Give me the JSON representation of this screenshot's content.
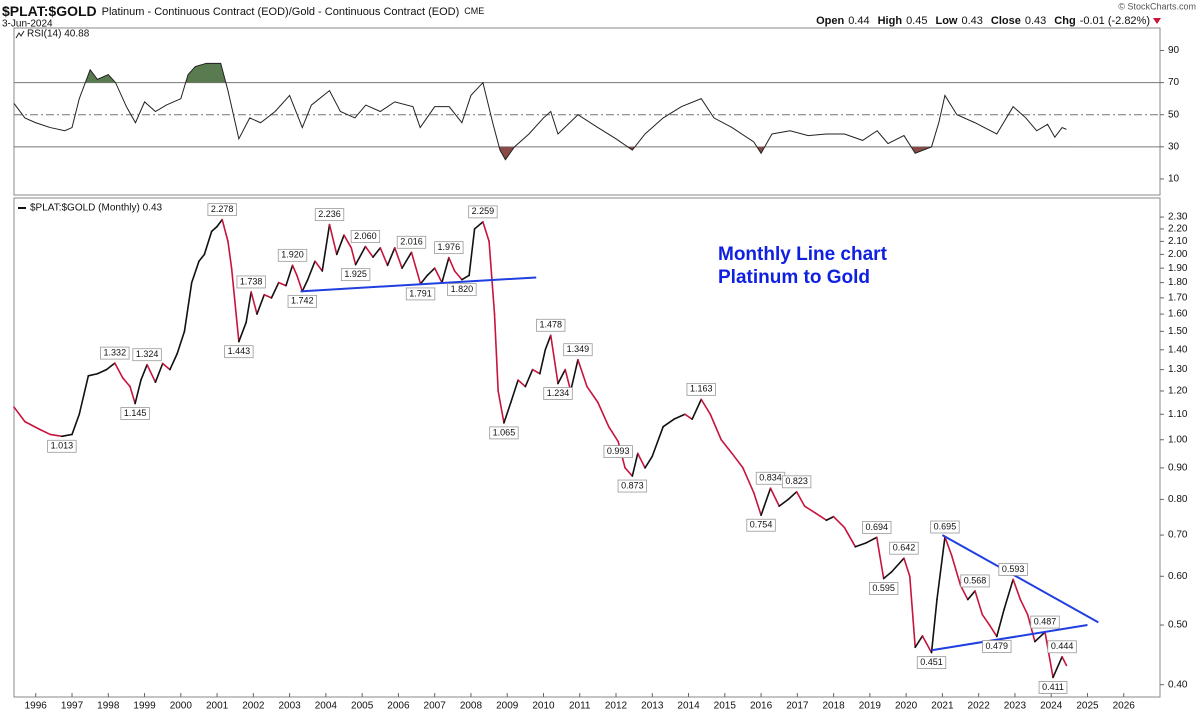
{
  "header": {
    "symbol": "$PLAT:$GOLD",
    "description": "Platinum - Continuous Contract (EOD)/Gold - Continuous Contract (EOD)",
    "exchange": "CME",
    "date": "3-Jun-2024",
    "credit": "© StockCharts.com",
    "quote": [
      {
        "label": "Open",
        "value": "0.44"
      },
      {
        "label": "High",
        "value": "0.45"
      },
      {
        "label": "Low",
        "value": "0.43"
      },
      {
        "label": "Close",
        "value": "0.43"
      },
      {
        "label": "Chg",
        "value": "-0.01 (-2.82%)"
      }
    ]
  },
  "chart_data": [
    {
      "type": "line",
      "xlim": [
        1995.4,
        2027.0
      ],
      "ylim": [
        0,
        104
      ],
      "yticks": [
        10,
        30,
        50,
        70,
        90
      ],
      "overbought": 70,
      "oversold": 30,
      "midline": 50,
      "overbought_color": "#5a7a50",
      "oversold_color": "#8a4a48",
      "x": [
        1995.4,
        1995.7,
        1996.0,
        1996.4,
        1996.8,
        1997.0,
        1997.2,
        1997.5,
        1997.7,
        1998.0,
        1998.2,
        1998.5,
        1998.75,
        1999.0,
        1999.3,
        1999.6,
        2000.0,
        2000.2,
        2000.4,
        2000.7,
        2001.1,
        2001.3,
        2001.6,
        2001.9,
        2002.2,
        2002.6,
        2003.0,
        2003.35,
        2003.6,
        2004.1,
        2004.4,
        2004.8,
        2005.1,
        2005.5,
        2005.9,
        2006.4,
        2006.6,
        2007.0,
        2007.4,
        2007.75,
        2008.0,
        2008.33,
        2008.6,
        2008.8,
        2008.95,
        2009.2,
        2009.6,
        2010.0,
        2010.2,
        2010.4,
        2010.95,
        2011.5,
        2012.0,
        2012.45,
        2012.8,
        2013.3,
        2013.8,
        2014.35,
        2014.7,
        2015.2,
        2015.8,
        2016.0,
        2016.3,
        2016.8,
        2017.3,
        2017.8,
        2018.3,
        2018.8,
        2019.2,
        2019.5,
        2019.94,
        2020.25,
        2020.7,
        2020.9,
        2021.07,
        2021.4,
        2021.9,
        2022.5,
        2022.95,
        2023.3,
        2023.6,
        2023.9,
        2024.1,
        2024.3,
        2024.42
      ],
      "series": [
        {
          "name": "RSI(14) 40.88",
          "color": "#222222",
          "values": [
            57,
            48,
            45,
            42,
            40,
            42,
            60,
            78,
            72,
            75,
            70,
            55,
            45,
            58,
            52,
            56,
            60,
            75,
            80,
            82,
            82,
            65,
            35,
            48,
            45,
            52,
            62,
            42,
            56,
            65,
            52,
            48,
            56,
            52,
            58,
            55,
            42,
            55,
            55,
            45,
            62,
            70,
            45,
            28,
            22,
            30,
            38,
            48,
            52,
            38,
            50,
            42,
            35,
            28,
            38,
            48,
            55,
            60,
            48,
            42,
            33,
            26,
            38,
            40,
            37,
            38,
            38,
            34,
            40,
            32,
            37,
            26,
            30,
            45,
            62,
            50,
            45,
            38,
            55,
            48,
            40,
            44,
            36,
            42,
            40.88
          ]
        }
      ]
    },
    {
      "type": "line",
      "log_scale": true,
      "xlim": [
        1995.4,
        2027.0
      ],
      "xticks": [
        1996,
        1997,
        1998,
        1999,
        2000,
        2001,
        2002,
        2003,
        2004,
        2005,
        2006,
        2007,
        2008,
        2009,
        2010,
        2011,
        2012,
        2013,
        2014,
        2015,
        2016,
        2017,
        2018,
        2019,
        2020,
        2021,
        2022,
        2023,
        2024,
        2025,
        2026
      ],
      "ylim": [
        0.382,
        2.47
      ],
      "yticks": [
        {
          "value": 0.4,
          "label": "0.40"
        },
        {
          "value": 0.5,
          "label": "0.50"
        },
        {
          "value": 0.6,
          "label": "0.60"
        },
        {
          "value": 0.7,
          "label": "0.70"
        },
        {
          "value": 0.8,
          "label": "0.80"
        },
        {
          "value": 0.9,
          "label": "0.90"
        },
        {
          "value": 1.0,
          "label": "1.00"
        },
        {
          "value": 1.1,
          "label": "1.10"
        },
        {
          "value": 1.2,
          "label": "1.20"
        },
        {
          "value": 1.3,
          "label": "1.30"
        },
        {
          "value": 1.4,
          "label": "1.40"
        },
        {
          "value": 1.5,
          "label": "1.50"
        },
        {
          "value": 1.6,
          "label": "1.60"
        },
        {
          "value": 1.7,
          "label": "1.70"
        },
        {
          "value": 1.8,
          "label": "1.80"
        },
        {
          "value": 1.9,
          "label": "1.90"
        },
        {
          "value": 2.0,
          "label": "2.00"
        },
        {
          "value": 2.1,
          "label": "2.10"
        },
        {
          "value": 2.2,
          "label": "2.20"
        },
        {
          "value": 2.3,
          "label": "2.30"
        }
      ],
      "x": [
        1995.4,
        1995.7,
        1996.1,
        1996.4,
        1996.72,
        1997.0,
        1997.2,
        1997.45,
        1997.7,
        1997.95,
        1998.18,
        1998.4,
        1998.6,
        1998.74,
        1998.9,
        1999.07,
        1999.3,
        1999.5,
        1999.7,
        1999.9,
        2000.1,
        2000.3,
        2000.5,
        2000.65,
        2000.85,
        2001.0,
        2001.14,
        2001.3,
        2001.4,
        2001.6,
        2001.8,
        2001.94,
        2002.1,
        2002.3,
        2002.5,
        2002.7,
        2002.9,
        2003.08,
        2003.2,
        2003.35,
        2003.5,
        2003.7,
        2003.9,
        2004.1,
        2004.3,
        2004.5,
        2004.7,
        2004.82,
        2005.09,
        2005.3,
        2005.5,
        2005.7,
        2005.9,
        2006.1,
        2006.36,
        2006.61,
        2006.8,
        2007.0,
        2007.2,
        2007.39,
        2007.55,
        2007.75,
        2007.95,
        2008.1,
        2008.33,
        2008.5,
        2008.65,
        2008.75,
        2008.91,
        2009.1,
        2009.3,
        2009.5,
        2009.7,
        2009.9,
        2010.05,
        2010.2,
        2010.4,
        2010.6,
        2010.75,
        2010.95,
        2011.2,
        2011.5,
        2011.8,
        2012.06,
        2012.25,
        2012.45,
        2012.6,
        2012.8,
        2013.0,
        2013.3,
        2013.6,
        2013.9,
        2014.1,
        2014.35,
        2014.6,
        2014.9,
        2015.2,
        2015.5,
        2015.8,
        2016.0,
        2016.26,
        2016.5,
        2016.75,
        2016.98,
        2017.2,
        2017.5,
        2017.8,
        2018.0,
        2018.3,
        2018.6,
        2018.9,
        2019.19,
        2019.38,
        2019.6,
        2019.94,
        2020.1,
        2020.25,
        2020.45,
        2020.7,
        2020.85,
        2021.07,
        2021.25,
        2021.5,
        2021.7,
        2021.9,
        2022.1,
        2022.3,
        2022.5,
        2022.7,
        2022.95,
        2023.15,
        2023.35,
        2023.55,
        2023.83,
        2024.05,
        2024.3,
        2024.42
      ],
      "series": [
        {
          "name": "$PLAT:$GOLD (Monthly) 0.43",
          "up_color": "#111111",
          "down_color": "#c8143c",
          "values": [
            1.13,
            1.07,
            1.04,
            1.02,
            1.013,
            1.02,
            1.1,
            1.27,
            1.28,
            1.3,
            1.332,
            1.26,
            1.22,
            1.145,
            1.25,
            1.324,
            1.24,
            1.33,
            1.3,
            1.38,
            1.5,
            1.8,
            1.95,
            2.0,
            2.18,
            2.22,
            2.278,
            2.1,
            1.9,
            1.443,
            1.55,
            1.738,
            1.6,
            1.72,
            1.7,
            1.8,
            1.78,
            1.92,
            1.85,
            1.742,
            1.82,
            1.95,
            1.88,
            2.236,
            2.0,
            2.15,
            2.05,
            1.925,
            2.06,
            1.98,
            2.05,
            1.92,
            2.05,
            1.9,
            2.016,
            1.791,
            1.85,
            1.9,
            1.8,
            1.976,
            1.88,
            1.82,
            1.85,
            2.2,
            2.259,
            2.1,
            1.6,
            1.2,
            1.065,
            1.15,
            1.25,
            1.22,
            1.3,
            1.28,
            1.4,
            1.478,
            1.234,
            1.3,
            1.2,
            1.349,
            1.22,
            1.15,
            1.05,
            0.993,
            0.9,
            0.873,
            0.95,
            0.9,
            0.94,
            1.05,
            1.08,
            1.1,
            1.08,
            1.163,
            1.1,
            1.0,
            0.95,
            0.9,
            0.82,
            0.754,
            0.834,
            0.78,
            0.8,
            0.823,
            0.78,
            0.76,
            0.74,
            0.75,
            0.72,
            0.67,
            0.68,
            0.694,
            0.595,
            0.61,
            0.642,
            0.6,
            0.46,
            0.48,
            0.451,
            0.55,
            0.695,
            0.65,
            0.58,
            0.55,
            0.568,
            0.52,
            0.5,
            0.479,
            0.53,
            0.593,
            0.55,
            0.52,
            0.47,
            0.487,
            0.411,
            0.444,
            0.43
          ]
        }
      ],
      "annotations": [
        {
          "x": 1996.72,
          "y": 1.013
        },
        {
          "x": 1998.18,
          "y": 1.332
        },
        {
          "x": 1998.74,
          "y": 1.145
        },
        {
          "x": 1999.07,
          "y": 1.324
        },
        {
          "x": 2001.14,
          "y": 2.278
        },
        {
          "x": 2001.6,
          "y": 1.443
        },
        {
          "x": 2001.94,
          "y": 1.738
        },
        {
          "x": 2003.08,
          "y": 1.92,
          "label": "1.920"
        },
        {
          "x": 2003.35,
          "y": 1.742
        },
        {
          "x": 2004.1,
          "y": 2.236
        },
        {
          "x": 2005.09,
          "y": 2.06,
          "label": "2.060"
        },
        {
          "x": 2004.82,
          "y": 1.925
        },
        {
          "x": 2006.36,
          "y": 2.016
        },
        {
          "x": 2006.61,
          "y": 1.791
        },
        {
          "x": 2007.39,
          "y": 1.976
        },
        {
          "x": 2007.75,
          "y": 1.82,
          "label": "1.820"
        },
        {
          "x": 2008.33,
          "y": 2.259
        },
        {
          "x": 2008.91,
          "y": 1.065
        },
        {
          "x": 2010.2,
          "y": 1.478
        },
        {
          "x": 2010.4,
          "y": 1.234
        },
        {
          "x": 2010.95,
          "y": 1.349
        },
        {
          "x": 2012.06,
          "y": 0.993
        },
        {
          "x": 2012.45,
          "y": 0.873
        },
        {
          "x": 2014.35,
          "y": 1.163
        },
        {
          "x": 2016.0,
          "y": 0.754
        },
        {
          "x": 2016.26,
          "y": 0.834
        },
        {
          "x": 2016.98,
          "y": 0.823
        },
        {
          "x": 2019.19,
          "y": 0.694
        },
        {
          "x": 2019.38,
          "y": 0.595
        },
        {
          "x": 2019.94,
          "y": 0.642
        },
        {
          "x": 2021.07,
          "y": 0.695
        },
        {
          "x": 2020.7,
          "y": 0.451
        },
        {
          "x": 2021.9,
          "y": 0.568
        },
        {
          "x": 2022.5,
          "y": 0.479
        },
        {
          "x": 2022.95,
          "y": 0.593
        },
        {
          "x": 2023.83,
          "y": 0.487
        },
        {
          "x": 2024.05,
          "y": 0.411
        },
        {
          "x": 2024.3,
          "y": 0.444
        }
      ],
      "trendline_color": "#1f3fe0",
      "trendlines": [
        {
          "x": [
            2003.3,
            2009.8
          ],
          "y": [
            1.742,
            1.835
          ]
        },
        {
          "x": [
            2021.0,
            2025.3
          ],
          "y": [
            0.7,
            0.505
          ]
        },
        {
          "x": [
            2020.7,
            2025.0
          ],
          "y": [
            0.455,
            0.5
          ]
        }
      ],
      "note": [
        "Monthly Line chart",
        "Platinum to Gold"
      ],
      "note_color": "#1020e0"
    }
  ]
}
